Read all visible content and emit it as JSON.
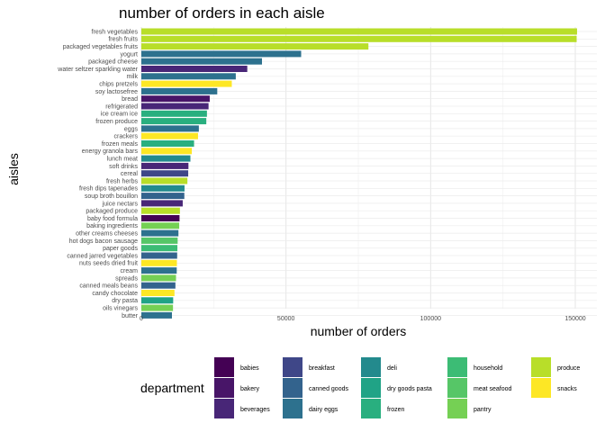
{
  "chart_data": {
    "type": "bar",
    "orientation": "horizontal",
    "title": "number of orders in each aisle",
    "xlabel": "number of orders",
    "ylabel": "aisles",
    "xlim": [
      0,
      160000
    ],
    "xticks": [
      0,
      50000,
      100000,
      150000
    ],
    "grid": true,
    "legend": {
      "title": "department",
      "position": "bottom",
      "entries": [
        {
          "name": "babies",
          "color": "#440154"
        },
        {
          "name": "bakery",
          "color": "#481568"
        },
        {
          "name": "beverages",
          "color": "#482677"
        },
        {
          "name": "breakfast",
          "color": "#3F4788"
        },
        {
          "name": "canned goods",
          "color": "#33638D"
        },
        {
          "name": "dairy eggs",
          "color": "#2D718E"
        },
        {
          "name": "deli",
          "color": "#238A8D"
        },
        {
          "name": "dry goods pasta",
          "color": "#20A386"
        },
        {
          "name": "frozen",
          "color": "#29AF7F"
        },
        {
          "name": "household",
          "color": "#3CBC75"
        },
        {
          "name": "meat seafood",
          "color": "#56C667"
        },
        {
          "name": "pantry",
          "color": "#75D054"
        },
        {
          "name": "produce",
          "color": "#B8DE29"
        },
        {
          "name": "snacks",
          "color": "#FDE725"
        }
      ]
    },
    "bars": [
      {
        "aisle": "fresh vegetables",
        "value": 150609,
        "department": "produce"
      },
      {
        "aisle": "fresh fruits",
        "value": 150473,
        "department": "produce"
      },
      {
        "aisle": "packaged vegetables fruits",
        "value": 78493,
        "department": "produce"
      },
      {
        "aisle": "yogurt",
        "value": 55240,
        "department": "dairy eggs"
      },
      {
        "aisle": "packaged cheese",
        "value": 41699,
        "department": "dairy eggs"
      },
      {
        "aisle": "water seltzer sparkling water",
        "value": 36617,
        "department": "beverages"
      },
      {
        "aisle": "milk",
        "value": 32644,
        "department": "dairy eggs"
      },
      {
        "aisle": "chips pretzels",
        "value": 31269,
        "department": "snacks"
      },
      {
        "aisle": "soy lactosefree",
        "value": 26240,
        "department": "dairy eggs"
      },
      {
        "aisle": "bread",
        "value": 23635,
        "department": "bakery"
      },
      {
        "aisle": "refrigerated",
        "value": 23228,
        "department": "beverages"
      },
      {
        "aisle": "ice cream ice",
        "value": 22676,
        "department": "frozen"
      },
      {
        "aisle": "frozen produce",
        "value": 22453,
        "department": "frozen"
      },
      {
        "aisle": "eggs",
        "value": 19875,
        "department": "dairy eggs"
      },
      {
        "aisle": "crackers",
        "value": 19592,
        "department": "snacks"
      },
      {
        "aisle": "frozen meals",
        "value": 18221,
        "department": "frozen"
      },
      {
        "aisle": "energy granola bars",
        "value": 17449,
        "department": "snacks"
      },
      {
        "aisle": "lunch meat",
        "value": 16957,
        "department": "deli"
      },
      {
        "aisle": "soft drinks",
        "value": 16279,
        "department": "beverages"
      },
      {
        "aisle": "cereal",
        "value": 16201,
        "department": "breakfast"
      },
      {
        "aisle": "fresh herbs",
        "value": 15922,
        "department": "produce"
      },
      {
        "aisle": "fresh dips tapenades",
        "value": 14927,
        "department": "deli"
      },
      {
        "aisle": "soup broth bouillon",
        "value": 14856,
        "department": "canned goods"
      },
      {
        "aisle": "juice nectars",
        "value": 14299,
        "department": "beverages"
      },
      {
        "aisle": "packaged produce",
        "value": 13340,
        "department": "produce"
      },
      {
        "aisle": "baby food formula",
        "value": 13198,
        "department": "babies"
      },
      {
        "aisle": "baking ingredients",
        "value": 13088,
        "department": "pantry"
      },
      {
        "aisle": "other creams cheeses",
        "value": 12821,
        "department": "dairy eggs"
      },
      {
        "aisle": "hot dogs bacon sausage",
        "value": 12553,
        "department": "meat seafood"
      },
      {
        "aisle": "paper goods",
        "value": 12457,
        "department": "household"
      },
      {
        "aisle": "canned jarred vegetables",
        "value": 12380,
        "department": "canned goods"
      },
      {
        "aisle": "nuts seeds dried fruit",
        "value": 12288,
        "department": "snacks"
      },
      {
        "aisle": "cream",
        "value": 12231,
        "department": "dairy eggs"
      },
      {
        "aisle": "spreads",
        "value": 11980,
        "department": "pantry"
      },
      {
        "aisle": "canned meals beans",
        "value": 11774,
        "department": "canned goods"
      },
      {
        "aisle": "candy chocolate",
        "value": 11453,
        "department": "snacks"
      },
      {
        "aisle": "dry pasta",
        "value": 11003,
        "department": "dry goods pasta"
      },
      {
        "aisle": "oils vinegars",
        "value": 10938,
        "department": "pantry"
      },
      {
        "aisle": "butter",
        "value": 10575,
        "department": "dairy eggs"
      }
    ]
  }
}
